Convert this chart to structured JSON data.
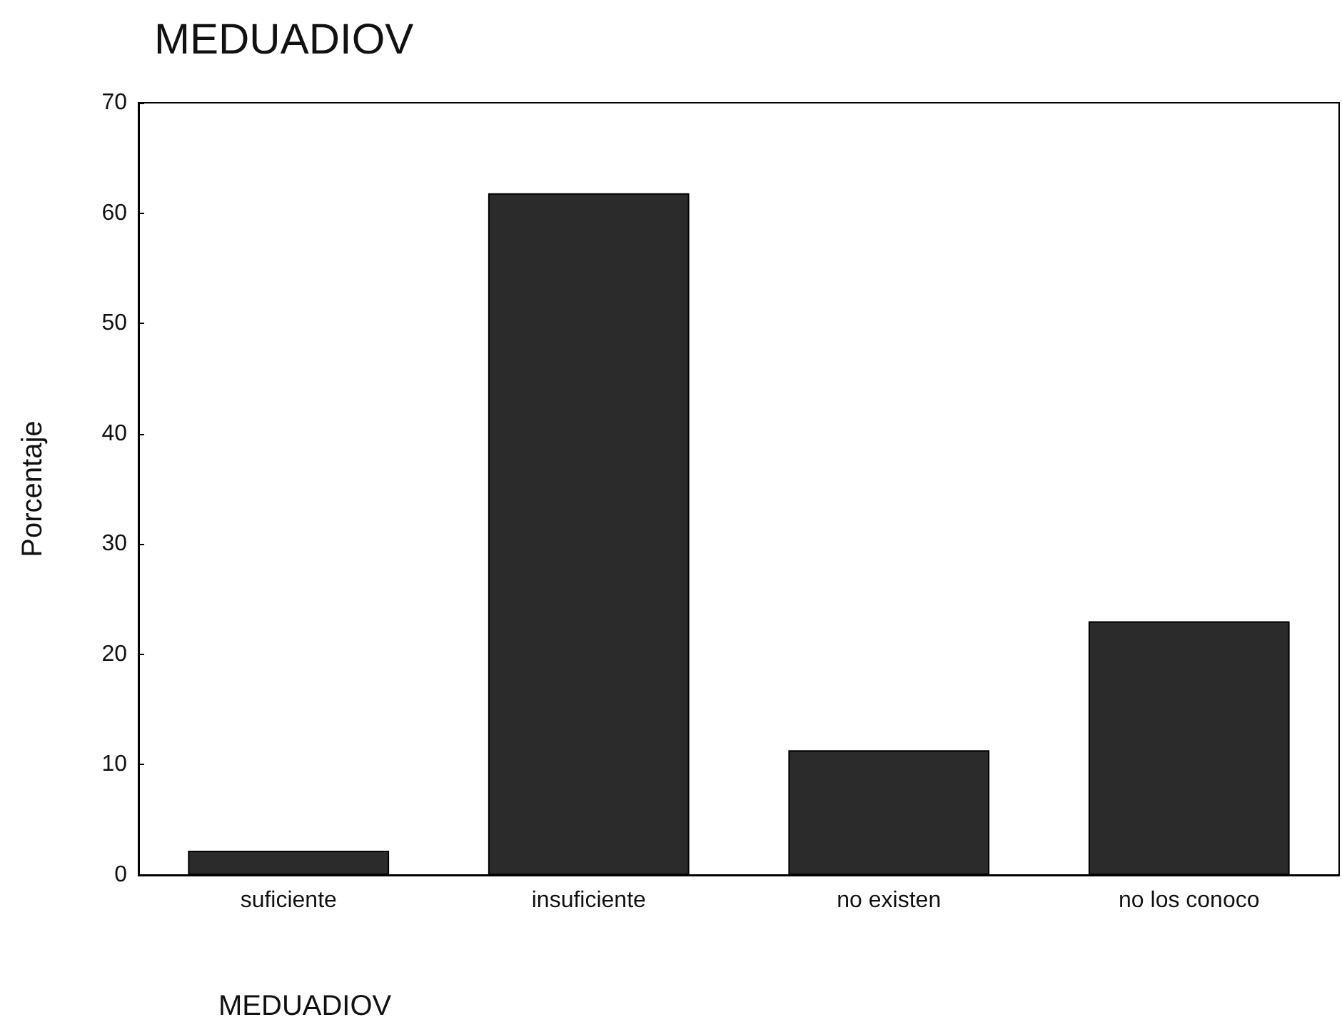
{
  "chart_data": {
    "type": "bar",
    "title": "MEDUADIOV",
    "xlabel": "MEDUADIOV",
    "ylabel": "Porcentaje",
    "categories": [
      "suficiente",
      "insuficiente",
      "no existen",
      "no los conoco"
    ],
    "values": [
      2.2,
      61.8,
      11.3,
      23.0
    ],
    "color": "#2b2b2b",
    "ylim": [
      0,
      70
    ],
    "yticks": [
      0,
      10,
      20,
      30,
      40,
      50,
      60,
      70
    ],
    "grid": false
  }
}
